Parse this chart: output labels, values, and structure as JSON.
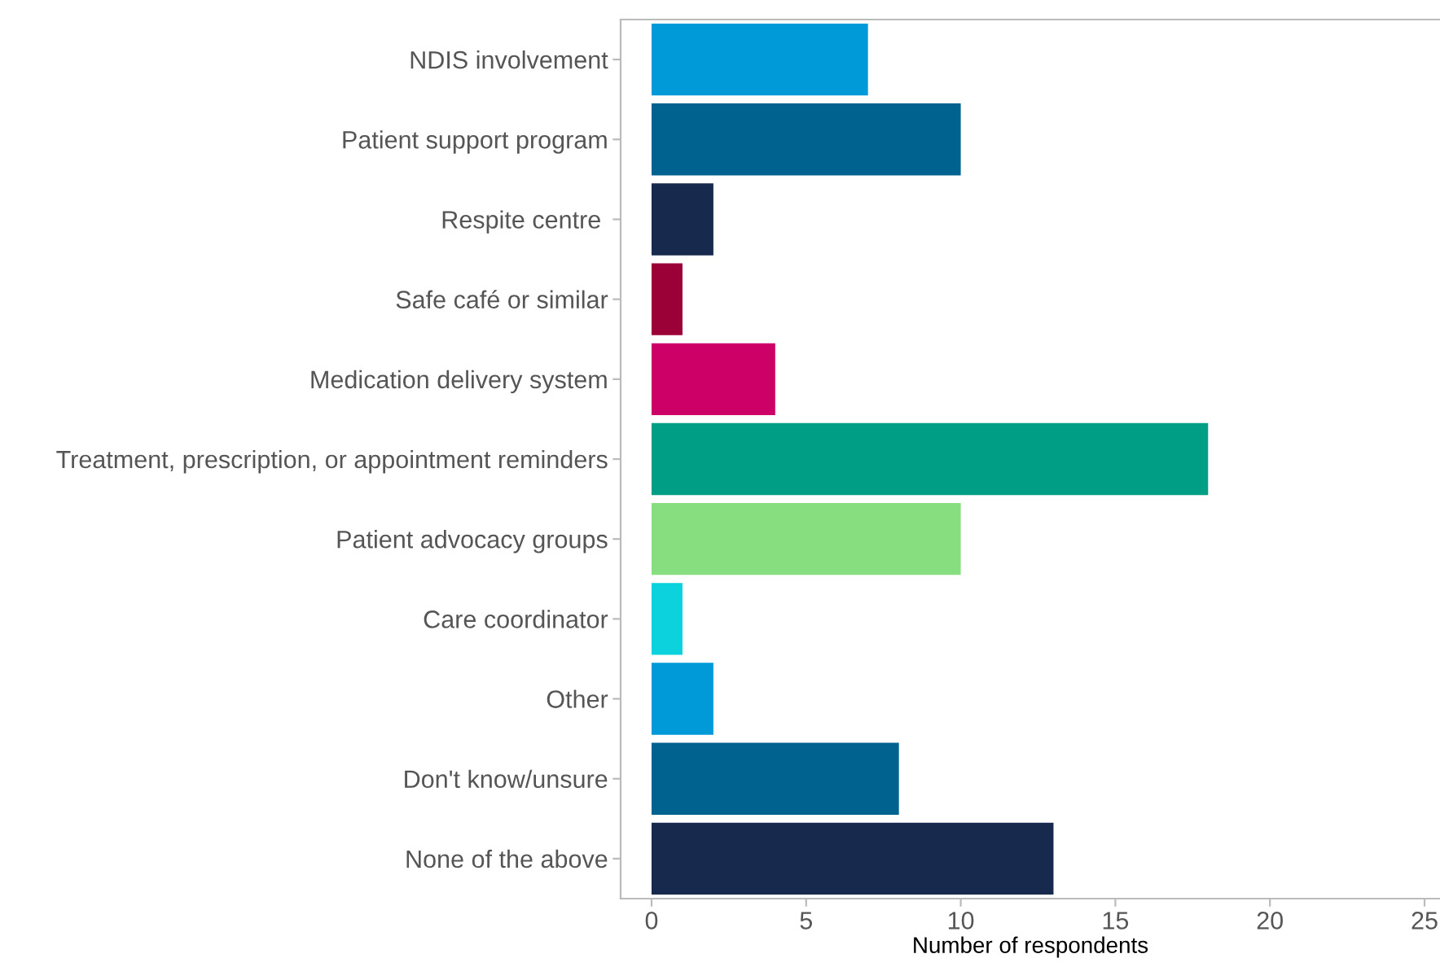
{
  "chart_data": {
    "type": "bar",
    "orientation": "horizontal",
    "xlabel": "Number of respondents",
    "categories": [
      "NDIS involvement",
      "Patient support program",
      "Respite centre ",
      "Safe café or similar",
      "Medication delivery system",
      "Treatment, prescription, or appointment reminders",
      "Patient advocacy groups",
      "Care coordinator",
      "Other",
      "Don't know/unsure",
      "None of the above"
    ],
    "values": [
      7,
      10,
      2,
      1,
      4,
      18,
      10,
      1,
      2,
      8,
      13
    ],
    "colors": [
      "#009ad8",
      "#00628f",
      "#172a4e",
      "#9b0037",
      "#cc0066",
      "#009f85",
      "#86de7f",
      "#0bd2dc",
      "#009ad8",
      "#00628f",
      "#172a4e"
    ],
    "xlim": [
      -1,
      25.5
    ],
    "xticks": [
      0,
      5,
      10,
      15,
      20,
      25
    ],
    "grid": false,
    "legend": false
  }
}
